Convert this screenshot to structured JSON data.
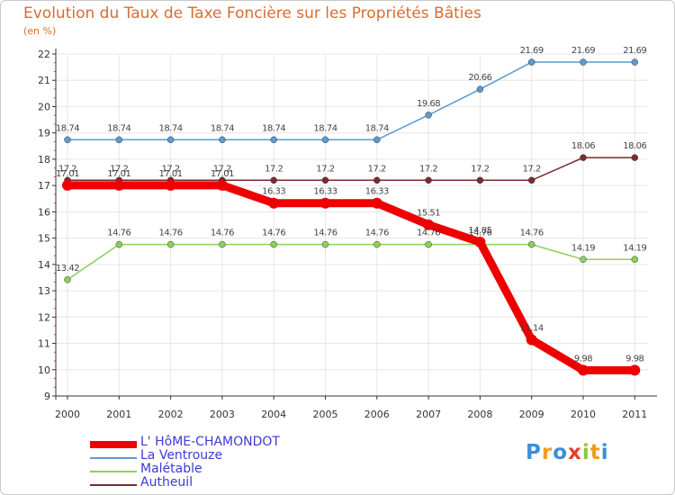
{
  "title": "Evolution du Taux de Taxe Foncière sur les Propriétés Bâties",
  "unit_label": "(en %)",
  "logo": {
    "letters": [
      "P",
      "r",
      "o",
      "x",
      "i",
      "t",
      "i"
    ],
    "colors": [
      "#3a8fd8",
      "#f39a1b",
      "#3a8fd8",
      "#e53d2f",
      "#8fc63f",
      "#f39a1b",
      "#3a8fd8"
    ]
  },
  "chart_data": {
    "type": "line",
    "title": "Evolution du Taux de Taxe Foncière sur les Propriétés Bâties",
    "ylabel": "(en %)",
    "xlabel": "",
    "ylim": [
      9,
      22
    ],
    "yticks": [
      9,
      10,
      11,
      12,
      13,
      14,
      15,
      16,
      17,
      18,
      19,
      20,
      21,
      22
    ],
    "categories": [
      "2000",
      "2001",
      "2002",
      "2003",
      "2004",
      "2005",
      "2006",
      "2007",
      "2008",
      "2009",
      "2010",
      "2011"
    ],
    "series": [
      {
        "name": "L' HôME-CHAMONDOT",
        "color": "#ee0000",
        "width": 9,
        "values": [
          17.01,
          17.01,
          17.01,
          17.01,
          16.33,
          16.33,
          16.33,
          15.51,
          14.85,
          11.14,
          9.98,
          9.98
        ],
        "labels": [
          "17.01",
          "17.01",
          "17.01",
          "17.01",
          "16.33",
          "16.33",
          "16.33",
          "15.51",
          "14.85",
          "11.14",
          "9.98",
          "9.98"
        ]
      },
      {
        "name": "La Ventrouze",
        "color": "#5b9bd0",
        "width": 1.5,
        "values": [
          18.74,
          18.74,
          18.74,
          18.74,
          18.74,
          18.74,
          18.74,
          19.68,
          20.66,
          21.69,
          21.69,
          21.69
        ],
        "labels": [
          "18.74",
          "18.74",
          "18.74",
          "18.74",
          "18.74",
          "18.74",
          "18.74",
          "19.68",
          "20.66",
          "21.69",
          "21.69",
          "21.69"
        ]
      },
      {
        "name": "Malétable",
        "color": "#8cd05a",
        "width": 1.5,
        "values": [
          13.42,
          14.76,
          14.76,
          14.76,
          14.76,
          14.76,
          14.76,
          14.76,
          14.76,
          14.76,
          14.19,
          14.19
        ],
        "labels": [
          "13.42",
          "14.76",
          "14.76",
          "14.76",
          "14.76",
          "14.76",
          "14.76",
          "14.76",
          "14.76",
          "14.76",
          "14.19",
          "14.19"
        ]
      },
      {
        "name": "Autheuil",
        "color": "#7b2a30",
        "width": 1.5,
        "values": [
          17.2,
          17.2,
          17.2,
          17.2,
          17.2,
          17.2,
          17.2,
          17.2,
          17.2,
          17.2,
          18.06,
          18.06
        ],
        "labels": [
          "17.2",
          "17.2",
          "17.2",
          "17.2",
          "17.2",
          "17.2",
          "17.2",
          "17.2",
          "17.2",
          "17.2",
          "18.06",
          "18.06"
        ]
      }
    ]
  }
}
